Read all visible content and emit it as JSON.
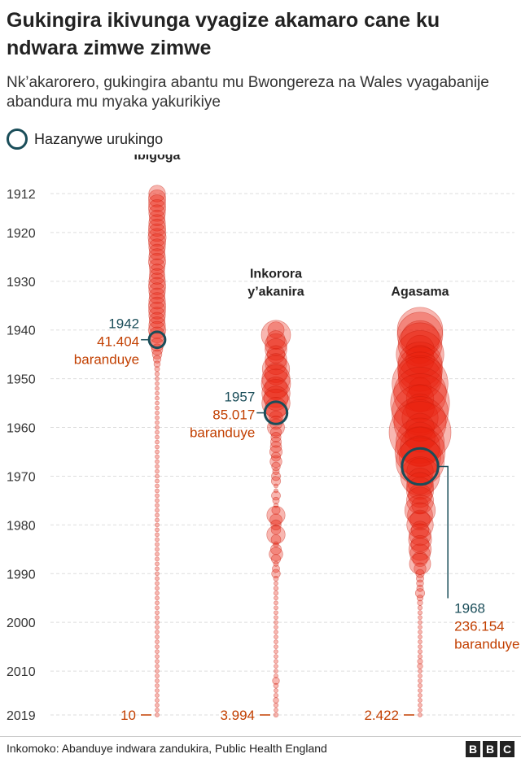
{
  "title": "Gukingira ikivunga vyagize akamaro cane ku ndwara zimwe zimwe",
  "subtitle": "Nk’akarorero, gukingira abantu mu Bwongereza na Wales vyagabanije abandura mu myaka yakurikiye",
  "legend": {
    "label": "Hazanywe urukingo"
  },
  "source": "Inkomoko: Abanduye indwara zandukira, Public Health England",
  "logo": [
    "B",
    "B",
    "C"
  ],
  "colors": {
    "bubble": "#e8200d",
    "bubble_stroke": "#c41a0a",
    "vaccine_ring": "#1a4d59",
    "year_text": "#1a4d59",
    "cases_text": "#c23f00"
  },
  "chart_data": {
    "type": "bubble",
    "y_axis": {
      "ticks": [
        1912,
        1920,
        1930,
        1940,
        1950,
        1960,
        1970,
        1980,
        1990,
        2000,
        2010,
        2019
      ],
      "range": [
        1912,
        2019
      ]
    },
    "series": [
      {
        "name": "Ibigoga",
        "label_lines": [
          "Ibigoga"
        ],
        "years": [
          1912,
          1913,
          1914,
          1915,
          1916,
          1917,
          1918,
          1919,
          1920,
          1921,
          1922,
          1923,
          1924,
          1925,
          1926,
          1927,
          1928,
          1929,
          1930,
          1931,
          1932,
          1933,
          1934,
          1935,
          1936,
          1937,
          1938,
          1939,
          1940,
          1941,
          1942,
          1943,
          1944,
          1945,
          1946,
          1947,
          1948,
          1949,
          1950,
          1951,
          1952,
          1953,
          1954,
          1955,
          1956,
          1957,
          1958,
          1959,
          1960,
          1961,
          1962,
          1963,
          1964,
          1965,
          1966,
          1967,
          1968,
          1969,
          1970,
          1971,
          1972,
          1973,
          1974,
          1975,
          1976,
          1977,
          1978,
          1979,
          1980,
          1981,
          1982,
          1983,
          1984,
          1985,
          1986,
          1987,
          1988,
          1989,
          1990,
          1991,
          1992,
          1993,
          1994,
          1995,
          1996,
          1997,
          1998,
          1999,
          2000,
          2001,
          2002,
          2003,
          2004,
          2005,
          2006,
          2007,
          2008,
          2009,
          2010,
          2011,
          2012,
          2013,
          2014,
          2015,
          2016,
          2017,
          2018,
          2019
        ],
        "cases": [
          55000,
          60000,
          58000,
          60000,
          55000,
          50000,
          55000,
          60000,
          62000,
          65000,
          60000,
          55000,
          50000,
          55000,
          60000,
          50000,
          45000,
          50000,
          55000,
          60000,
          55000,
          50000,
          55000,
          60000,
          58000,
          55000,
          50000,
          55000,
          60000,
          50000,
          41404,
          35000,
          25000,
          18000,
          12000,
          8000,
          5000,
          4000,
          3000,
          2000,
          1500,
          1000,
          800,
          600,
          500,
          400,
          350,
          300,
          250,
          200,
          180,
          160,
          140,
          120,
          100,
          90,
          80,
          70,
          60,
          55,
          50,
          45,
          40,
          38,
          35,
          32,
          30,
          28,
          26,
          24,
          22,
          20,
          20,
          18,
          18,
          16,
          16,
          15,
          15,
          14,
          14,
          13,
          13,
          12,
          12,
          12,
          12,
          11,
          11,
          11,
          11,
          11,
          11,
          11,
          11,
          10,
          10,
          10,
          10,
          10,
          10,
          10,
          10,
          10,
          10,
          10,
          10,
          10
        ],
        "vaccine_year": 1942,
        "vaccine_cases": 41404,
        "vaccine_year_label": "1942",
        "vaccine_cases_label": "41.404",
        "vaccine_unit": "baranduye",
        "last_value_label": "10"
      },
      {
        "name": "Inkorora y’akanira",
        "label_lines": [
          "Inkorora",
          "y’akanira"
        ],
        "years": [
          1940,
          1941,
          1942,
          1943,
          1944,
          1945,
          1946,
          1947,
          1948,
          1949,
          1950,
          1951,
          1952,
          1953,
          1954,
          1955,
          1956,
          1957,
          1958,
          1959,
          1960,
          1961,
          1962,
          1963,
          1964,
          1965,
          1966,
          1967,
          1968,
          1969,
          1970,
          1971,
          1972,
          1973,
          1974,
          1975,
          1976,
          1977,
          1978,
          1979,
          1980,
          1981,
          1982,
          1983,
          1984,
          1985,
          1986,
          1987,
          1988,
          1989,
          1990,
          1991,
          1992,
          1993,
          1994,
          1995,
          1996,
          1997,
          1998,
          1999,
          2000,
          2001,
          2002,
          2003,
          2004,
          2005,
          2006,
          2007,
          2008,
          2009,
          2010,
          2011,
          2012,
          2013,
          2014,
          2015,
          2016,
          2017,
          2018,
          2019
        ],
        "cases": [
          53000,
          170000,
          66000,
          96000,
          94000,
          62000,
          92000,
          90000,
          148000,
          97000,
          157000,
          170000,
          107000,
          158000,
          118000,
          158000,
          92000,
          85017,
          37000,
          35000,
          58000,
          24000,
          20000,
          23000,
          25000,
          31000,
          17000,
          28000,
          15000,
          9000,
          16000,
          17000,
          2000,
          2400,
          16000,
          9000,
          4000,
          14000,
          66000,
          30000,
          21000,
          18000,
          67000,
          19000,
          6000,
          23000,
          37000,
          17000,
          5000,
          11000,
          15000,
          5000,
          2300,
          4000,
          4000,
          2000,
          2400,
          2000,
          1200,
          1100,
          900,
          700,
          600,
          800,
          600,
          700,
          600,
          1100,
          1400,
          1000,
          1000,
          1100,
          9700,
          4600,
          3400,
          3900,
          5900,
          4000,
          2900,
          3994
        ],
        "vaccine_year": 1957,
        "vaccine_cases": 85017,
        "vaccine_year_label": "1957",
        "vaccine_cases_label": "85.017",
        "vaccine_unit": "baranduye",
        "last_value_label": "3.994"
      },
      {
        "name": "Agasama",
        "label_lines": [
          "Agasama"
        ],
        "years": [
          1940,
          1941,
          1942,
          1943,
          1944,
          1945,
          1946,
          1947,
          1948,
          1949,
          1950,
          1951,
          1952,
          1953,
          1954,
          1955,
          1956,
          1957,
          1958,
          1959,
          1960,
          1961,
          1962,
          1963,
          1964,
          1965,
          1966,
          1967,
          1968,
          1969,
          1970,
          1971,
          1972,
          1973,
          1974,
          1975,
          1976,
          1977,
          1978,
          1979,
          1980,
          1981,
          1982,
          1983,
          1984,
          1985,
          1986,
          1987,
          1988,
          1989,
          1990,
          1991,
          1992,
          1993,
          1994,
          1995,
          1996,
          1997,
          1998,
          1999,
          2000,
          2001,
          2002,
          2003,
          2004,
          2005,
          2006,
          2007,
          2008,
          2009,
          2010,
          2011,
          2012,
          2013,
          2014,
          2015,
          2016,
          2017,
          2018,
          2019
        ],
        "cases": [
          410000,
          410000,
          290000,
          380000,
          160000,
          450000,
          160000,
          390000,
          400000,
          380000,
          370000,
          620000,
          100000,
          550000,
          150000,
          690000,
          160000,
          630000,
          260000,
          540000,
          160000,
          760000,
          180000,
          460000,
          310000,
          500000,
          340000,
          460000,
          236154,
          140000,
          300000,
          135000,
          145000,
          145000,
          110000,
          145000,
          55000,
          185000,
          125000,
          80000,
          140000,
          60000,
          95000,
          105000,
          65000,
          100000,
          82000,
          45000,
          90000,
          28000,
          14000,
          11000,
          10000,
          9000,
          17000,
          7500,
          5600,
          3900,
          3700,
          2400,
          2400,
          2300,
          3000,
          2500,
          2400,
          2400,
          3700,
          3800,
          5300,
          5700,
          2400,
          2400,
          3000,
          3700,
          1800,
          1000,
          1200,
          800,
          900,
          2422
        ],
        "vaccine_year": 1968,
        "vaccine_cases": 236154,
        "vaccine_year_label": "1968",
        "vaccine_cases_label": "236.154",
        "vaccine_unit": "baranduye",
        "last_value_label": "2.422"
      }
    ]
  }
}
